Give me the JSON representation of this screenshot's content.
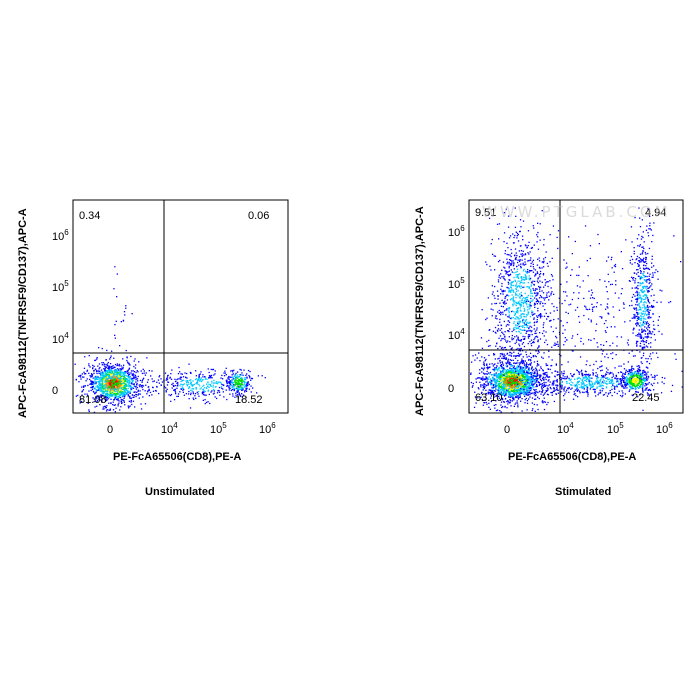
{
  "chart_data": [
    {
      "type": "scatter",
      "title": "Unstimulated",
      "xlabel": "PE-FcA65506(CD8),PE-A",
      "ylabel": "APC-FcA98112(TNFRSF9/CD137),APC-A",
      "x_ticks": [
        {
          "label": "0",
          "sup": ""
        },
        {
          "label": "10",
          "sup": "4"
        },
        {
          "label": "10",
          "sup": "5"
        },
        {
          "label": "10",
          "sup": "6"
        }
      ],
      "y_ticks": [
        {
          "label": "0",
          "sup": ""
        },
        {
          "label": "10",
          "sup": "4"
        },
        {
          "label": "10",
          "sup": "5"
        },
        {
          "label": "10",
          "sup": "6"
        }
      ],
      "quadrants": {
        "top_left": "0.34",
        "top_right": "0.06",
        "bottom_left": "81.08",
        "bottom_right": "18.52"
      },
      "gate": {
        "x": 10000,
        "y": 5000
      }
    },
    {
      "type": "scatter",
      "title": "Stimulated",
      "xlabel": "PE-FcA65506(CD8),PE-A",
      "ylabel": "APC-FcA98112(TNFRSF9/CD137),APC-A",
      "x_ticks": [
        {
          "label": "0",
          "sup": ""
        },
        {
          "label": "10",
          "sup": "4"
        },
        {
          "label": "10",
          "sup": "5"
        },
        {
          "label": "10",
          "sup": "6"
        }
      ],
      "y_ticks": [
        {
          "label": "0",
          "sup": ""
        },
        {
          "label": "10",
          "sup": "4"
        },
        {
          "label": "10",
          "sup": "5"
        },
        {
          "label": "10",
          "sup": "6"
        }
      ],
      "quadrants": {
        "top_left": "9.51",
        "top_right": "4.94",
        "bottom_left": "63.10",
        "bottom_right": "22.45"
      },
      "gate": {
        "x": 10000,
        "y": 5000
      },
      "watermark": "WWW.PTGLAB.COM"
    }
  ],
  "colors": {
    "low": "#0000ff",
    "mid_low": "#00c8ff",
    "mid": "#00e000",
    "mid_high": "#ffff00",
    "high": "#ff0000"
  }
}
